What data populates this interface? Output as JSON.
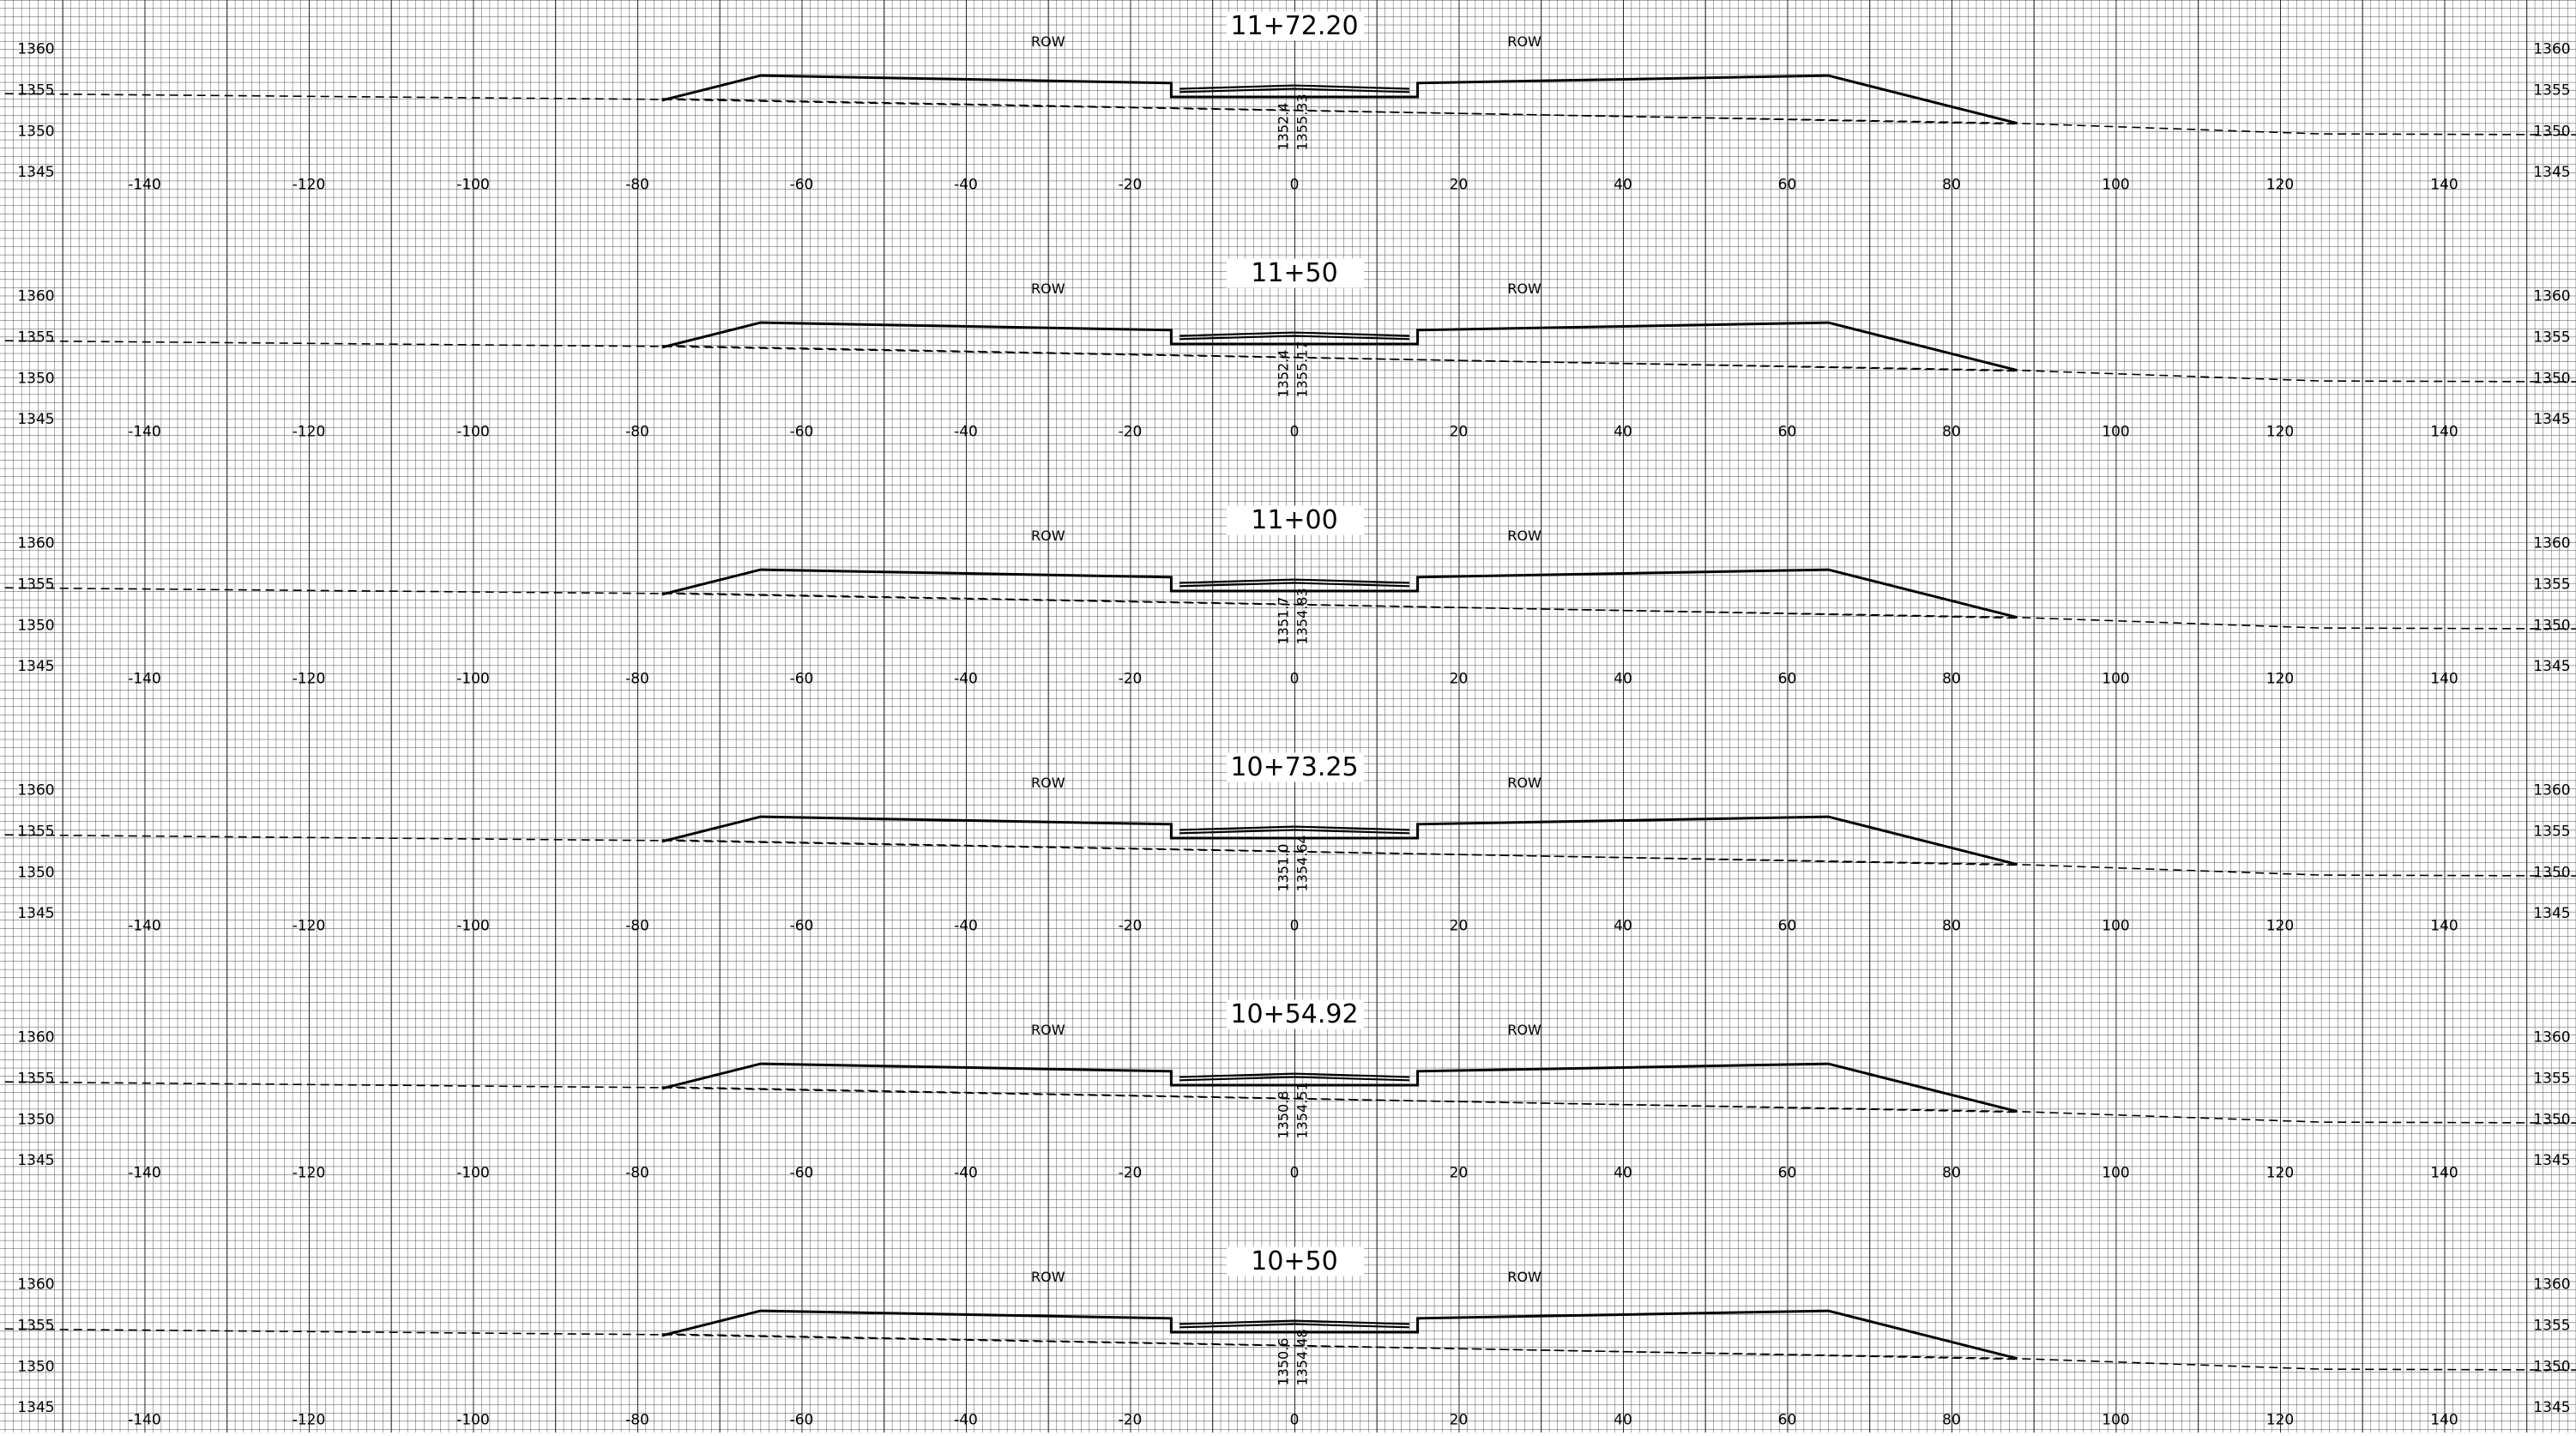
{
  "row_label": "ROW",
  "stations": [
    -140,
    -120,
    -100,
    -80,
    -60,
    -40,
    -20,
    0,
    20,
    40,
    60,
    80,
    100,
    120,
    140
  ],
  "elevations": [
    1360,
    1355,
    1350,
    1345
  ],
  "sections": [
    {
      "title": "11+72.20",
      "annotations": [
        "1352.4",
        "1355.33"
      ]
    },
    {
      "title": "11+50",
      "annotations": [
        "1352.4",
        "1355.17"
      ]
    },
    {
      "title": "11+00",
      "annotations": [
        "1351.7",
        "1354.83"
      ]
    },
    {
      "title": "10+73.25",
      "annotations": [
        "1351.0",
        "1354.64"
      ]
    },
    {
      "title": "10+54.92",
      "annotations": [
        "1350.8",
        "1354.51"
      ]
    },
    {
      "title": "10+50",
      "annotations": [
        "1350.6",
        "1354.48"
      ]
    }
  ]
}
